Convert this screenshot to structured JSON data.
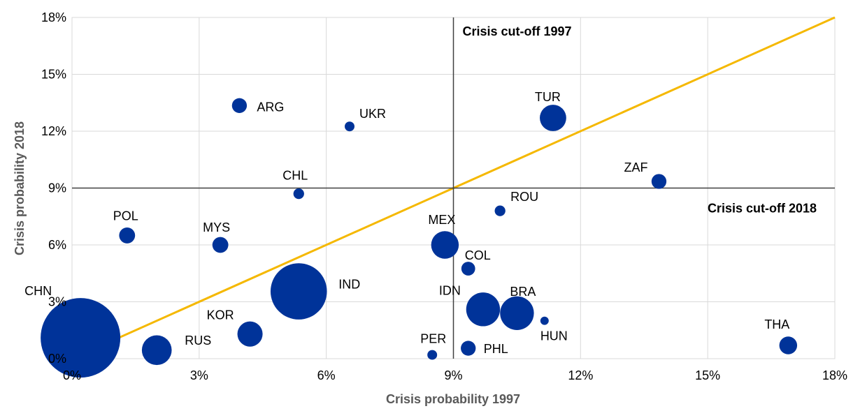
{
  "chart_data": {
    "type": "scatter",
    "subtype": "bubble",
    "xlabel": "Crisis probability 1997",
    "ylabel": "Crisis probability 2018",
    "xlim": [
      0,
      18
    ],
    "ylim": [
      0,
      18
    ],
    "x_ticks": [
      "0%",
      "3%",
      "6%",
      "9%",
      "12%",
      "15%",
      "18%"
    ],
    "y_ticks": [
      "0%",
      "3%",
      "6%",
      "9%",
      "12%",
      "15%",
      "18%"
    ],
    "grid": true,
    "legend": "none",
    "colors": {
      "bubble": "#003399",
      "diagonal": "#f5b800",
      "cutoff": "#404040",
      "grid": "#d9d9d9"
    },
    "diagonal": {
      "from": [
        0,
        0
      ],
      "to": [
        18,
        18
      ]
    },
    "cutoffs": [
      {
        "axis": "x",
        "value": 9,
        "label": "Crisis cut-off 1997"
      },
      {
        "axis": "y",
        "value": 9,
        "label": "Crisis cut-off 2018"
      }
    ],
    "points": [
      {
        "label": "CHN",
        "x": 0.2,
        "y": 1.1,
        "size": 100
      },
      {
        "label": "RUS",
        "x": 2.0,
        "y": 0.45,
        "size": 14
      },
      {
        "label": "POL",
        "x": 1.3,
        "y": 6.5,
        "size": 4
      },
      {
        "label": "MYS",
        "x": 3.5,
        "y": 6.0,
        "size": 4
      },
      {
        "label": "KOR",
        "x": 4.2,
        "y": 1.3,
        "size": 10
      },
      {
        "label": "ARG",
        "x": 3.95,
        "y": 13.35,
        "size": 3.5
      },
      {
        "label": "CHL",
        "x": 5.35,
        "y": 8.7,
        "size": 1.8
      },
      {
        "label": "UKR",
        "x": 6.55,
        "y": 12.25,
        "size": 1.5
      },
      {
        "label": "IND",
        "x": 5.35,
        "y": 3.55,
        "size": 50
      },
      {
        "label": "MEX",
        "x": 8.8,
        "y": 6.0,
        "size": 12
      },
      {
        "label": "COL",
        "x": 9.35,
        "y": 4.75,
        "size": 3
      },
      {
        "label": "IDN",
        "x": 9.7,
        "y": 2.6,
        "size": 18
      },
      {
        "label": "BRA",
        "x": 10.5,
        "y": 2.4,
        "size": 18
      },
      {
        "label": "PER",
        "x": 8.5,
        "y": 0.2,
        "size": 1.5
      },
      {
        "label": "PHL",
        "x": 9.35,
        "y": 0.55,
        "size": 3.5
      },
      {
        "label": "ROU",
        "x": 10.1,
        "y": 7.8,
        "size": 1.8
      },
      {
        "label": "HUN",
        "x": 11.15,
        "y": 2.0,
        "size": 1.1
      },
      {
        "label": "TUR",
        "x": 11.35,
        "y": 12.7,
        "size": 11
      },
      {
        "label": "ZAF",
        "x": 13.85,
        "y": 9.35,
        "size": 3.5
      },
      {
        "label": "THA",
        "x": 16.9,
        "y": 0.7,
        "size": 5
      }
    ]
  }
}
